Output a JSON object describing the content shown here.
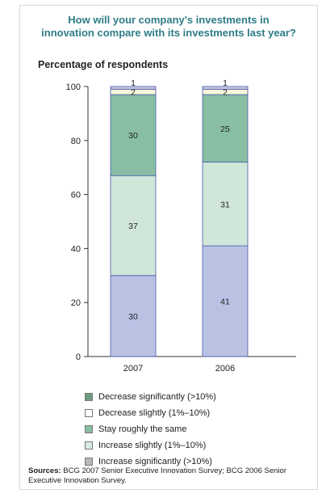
{
  "chart_data": {
    "type": "bar",
    "stacked": true,
    "title_lines": [
      "How will your company's investments in",
      "innovation compare with its investments last year?"
    ],
    "subtitle": "Percentage of respondents",
    "categories": [
      "2007",
      "2006"
    ],
    "ylim": [
      0,
      100
    ],
    "yticks": [
      "0",
      "20",
      "40",
      "60",
      "80",
      "100"
    ],
    "series": [
      {
        "name": "Increase significantly (>10%)",
        "values": [
          30,
          41
        ],
        "labels": [
          "30",
          "41"
        ],
        "color": "#b9c2e3"
      },
      {
        "name": "Increase slightly (1%–10%)",
        "values": [
          37,
          31
        ],
        "labels": [
          "37",
          "31"
        ],
        "color": "#cfe6d9"
      },
      {
        "name": "Stay roughly the same",
        "values": [
          30,
          25
        ],
        "labels": [
          "30",
          "25"
        ],
        "color": "#88bfa4"
      },
      {
        "name": "Decrease slightly (1%–10%)",
        "values": [
          2,
          2
        ],
        "labels": [
          "2",
          "2"
        ],
        "color": "#f8f6da"
      },
      {
        "name": "Decrease significantly (>10%)",
        "values": [
          1,
          1
        ],
        "labels": [
          "1",
          "1"
        ],
        "color": "#c9c7e6"
      }
    ],
    "legend_order": [
      4,
      3,
      2,
      1,
      0
    ],
    "legend_colors": [
      "#6f9a82",
      "#ffffff",
      "#88bfa4",
      "#d8ece1",
      "#b8b8b8"
    ],
    "grid": false
  },
  "source_label": "Sources:",
  "source_text": "BCG 2007 Senior Executive Innovation Survey; BCG 2006 Senior Executive Innovation Survey."
}
